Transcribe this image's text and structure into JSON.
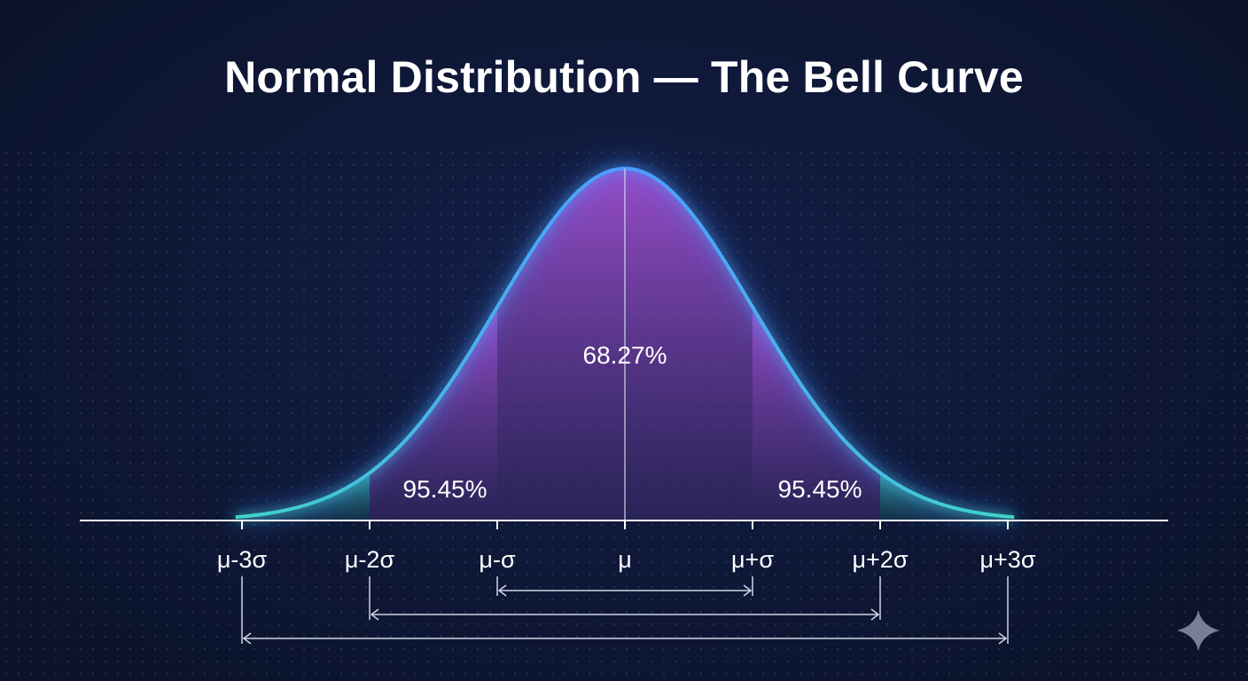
{
  "title": "Normal Distribution — The Bell Curve",
  "chart_data": {
    "type": "area",
    "distribution": "normal",
    "x_range_sigma": [
      -3.0,
      3.0
    ],
    "ticks": [
      {
        "sigma": -3,
        "label": "μ-3σ"
      },
      {
        "sigma": -2,
        "label": "μ-2σ"
      },
      {
        "sigma": -1,
        "label": "μ-σ"
      },
      {
        "sigma": 0,
        "label": "μ"
      },
      {
        "sigma": 1,
        "label": "μ+σ"
      },
      {
        "sigma": 2,
        "label": "μ+2σ"
      },
      {
        "sigma": 3,
        "label": "μ+3σ"
      }
    ],
    "regions": [
      {
        "from": -1,
        "to": 1,
        "label": "68.27%",
        "color": "#5b7fd0"
      },
      {
        "from": -2,
        "to": -1,
        "label": "95.45%",
        "color": "#8a4fbf"
      },
      {
        "from": 1,
        "to": 2,
        "label": "95.45%",
        "color": "#8a4fbf"
      },
      {
        "from": -3,
        "to": -2,
        "color": "#1f8a8a"
      },
      {
        "from": 2,
        "to": 3,
        "color": "#1f8a8a"
      }
    ],
    "brackets": [
      {
        "from": -1,
        "to": 1
      },
      {
        "from": -2,
        "to": 2
      },
      {
        "from": -3,
        "to": 3
      }
    ],
    "colors": {
      "background": "#0e1735",
      "curve_center": "#4f9bff",
      "curve_tails": "#3fd6c8",
      "axis": "#ffffff",
      "bracket": "#cfd6e6"
    }
  }
}
